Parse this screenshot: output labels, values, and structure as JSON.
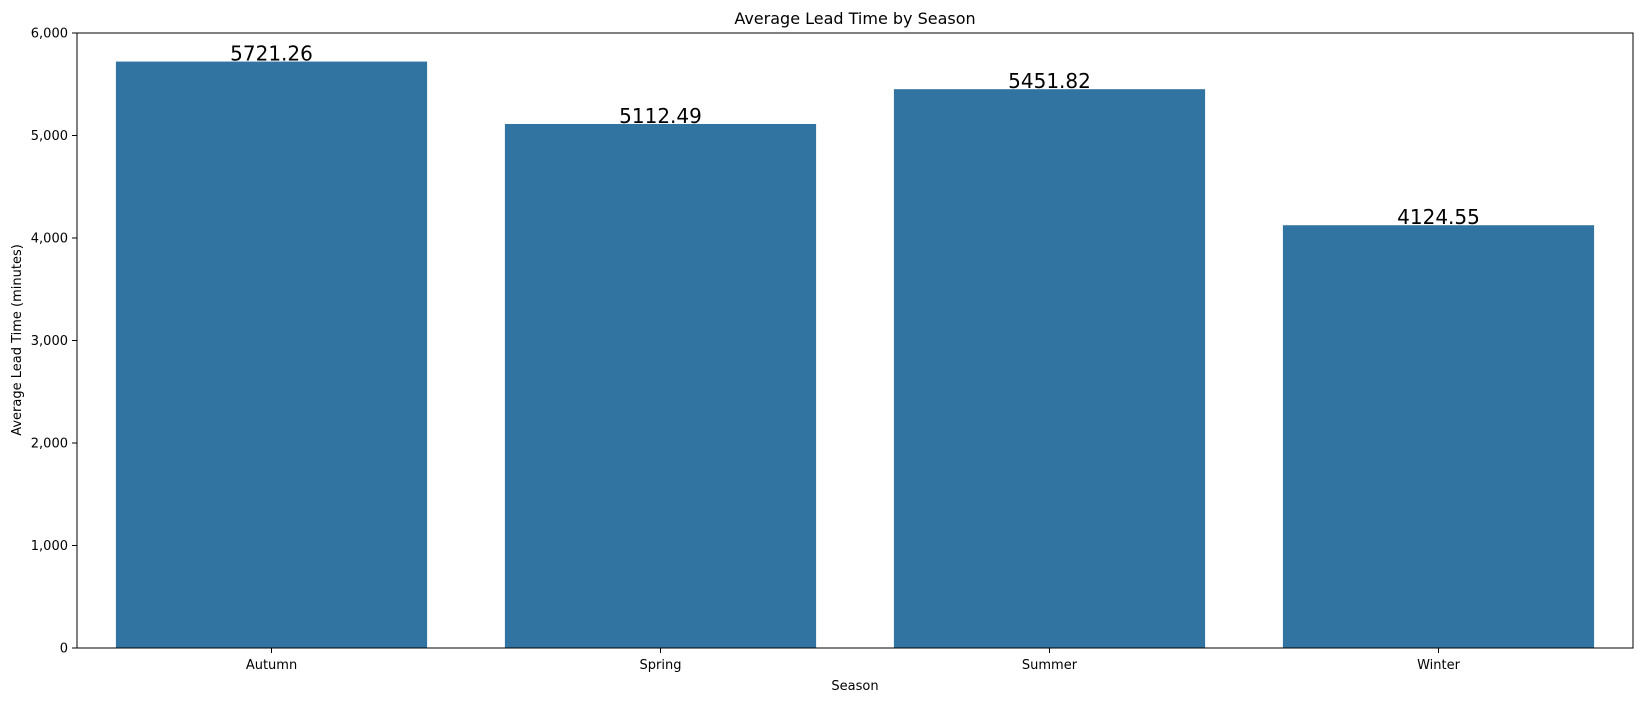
{
  "chart_data": {
    "type": "bar",
    "title": "Average Lead Time by Season",
    "xlabel": "Season",
    "ylabel": "Average Lead Time (minutes)",
    "categories": [
      "Autumn",
      "Spring",
      "Summer",
      "Winter"
    ],
    "values": [
      5721.26,
      5112.49,
      5451.82,
      4124.55
    ],
    "value_labels": [
      "5721.26",
      "5112.49",
      "5451.82",
      "4124.55"
    ],
    "ylim": [
      0,
      6000
    ],
    "yticks": [
      0,
      1000,
      2000,
      3000,
      4000,
      5000,
      6000
    ],
    "ytick_labels": [
      "0",
      "1,000",
      "2,000",
      "3,000",
      "4,000",
      "5,000",
      "6,000"
    ],
    "bar_color": "#3274a1",
    "grid": false,
    "legend": false
  }
}
